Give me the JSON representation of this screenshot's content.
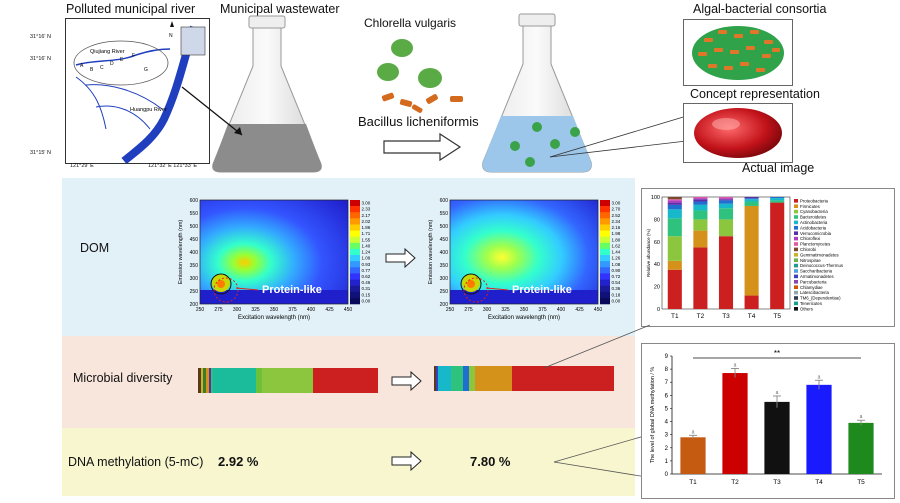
{
  "top": {
    "river_title": "Polluted municipal river",
    "wastewater_title": "Municipal wastewater",
    "consortia_title": "Algal-bacterial consortia",
    "chlorella": "Chlorella vulgaris",
    "bacillus": "Bacillus licheniformis",
    "concept": "Concept representation",
    "actual": "Actual image"
  },
  "map": {
    "lat1": "31°16' N",
    "lat2": "31°16' N",
    "lat3": "31°15' N",
    "lon1": "121°29' E",
    "lon2": "121°32' E 121°33' E",
    "qiujiang": "Qiujiang River",
    "huangpu": "Huangpu River",
    "sites": [
      "A",
      "B",
      "C",
      "D",
      "E",
      "F",
      "G"
    ],
    "north": "N"
  },
  "rows": {
    "dom": "DOM",
    "microbial": "Microbial diversity",
    "dna": "DNA methylation (5-mC)",
    "dna_before": "2.92 %",
    "dna_after": "7.80 %"
  },
  "eem": {
    "ylabel": "Emission wavelength (nm)",
    "xlabel": "Excitation wavelength (nm)",
    "peak_label": "Protein-like",
    "xticks": [
      "250",
      "275",
      "300",
      "325",
      "350",
      "375",
      "400",
      "425",
      "450"
    ],
    "yticks": [
      "600",
      "550",
      "500",
      "450",
      "400",
      "350",
      "300",
      "250",
      "200"
    ],
    "scale_before": [
      "3.00",
      "2.33",
      "2.17",
      "2.02",
      "1.86",
      "1.71",
      "1.55",
      "1.40",
      "1.24",
      "1.09",
      "0.93",
      "0.77",
      "0.62",
      "0.46",
      "0.31",
      "0.15",
      "0.00"
    ],
    "scale_after": [
      "3.00",
      "2.70",
      "2.52",
      "2.34",
      "2.16",
      "1.98",
      "1.80",
      "1.62",
      "1.44",
      "1.26",
      "1.08",
      "0.90",
      "0.72",
      "0.54",
      "0.36",
      "0.18",
      "0.00"
    ]
  },
  "abundance": {
    "ylabel": "Relative abundance (%)",
    "yticks": [
      "100",
      "80",
      "60",
      "40",
      "20",
      "0"
    ],
    "groups": [
      "T1",
      "T2",
      "T3",
      "T4",
      "T5"
    ],
    "legend": [
      {
        "name": "Proteobacteria",
        "color": "#cc1f1f"
      },
      {
        "name": "Firmicutes",
        "color": "#d4921a"
      },
      {
        "name": "Cyanobacteria",
        "color": "#8cc63f"
      },
      {
        "name": "Bacteroidetes",
        "color": "#2ec27e"
      },
      {
        "name": "Actinobacteria",
        "color": "#17b8c9"
      },
      {
        "name": "Acidobacteria",
        "color": "#1f6fd1"
      },
      {
        "name": "Verrucomicrobia",
        "color": "#5b2fa8"
      },
      {
        "name": "Chloroflexi",
        "color": "#b03cc2"
      },
      {
        "name": "Planctomycetes",
        "color": "#e05aa6"
      },
      {
        "name": "Chlorobi",
        "color": "#7a4a2a"
      },
      {
        "name": "Gemmatimonadetes",
        "color": "#c9b32b"
      },
      {
        "name": "Nitrospirae",
        "color": "#6bb34a"
      },
      {
        "name": "Deinococcus-Thermus",
        "color": "#1f9c8b"
      },
      {
        "name": "Saccharibacteria",
        "color": "#4aa3df"
      },
      {
        "name": "Armatimonadetes",
        "color": "#3a3fbf"
      },
      {
        "name": "Parcubacteria",
        "color": "#8e44ad"
      },
      {
        "name": "Chlamydiae",
        "color": "#d35400"
      },
      {
        "name": "Latescibacteria",
        "color": "#95a5a6"
      },
      {
        "name": "TM6_(Dependentiae)",
        "color": "#2c3e50"
      },
      {
        "name": "Tenericutes",
        "color": "#16a085"
      },
      {
        "name": "Others",
        "color": "#111111"
      }
    ],
    "stacks": [
      [
        35,
        8,
        22,
        16,
        8,
        4,
        2,
        2,
        1,
        2
      ],
      [
        55,
        15,
        10,
        8,
        5,
        3,
        2,
        1,
        1,
        0
      ],
      [
        65,
        0,
        15,
        10,
        4,
        3,
        1,
        1,
        1,
        0
      ],
      [
        12,
        80,
        0,
        4,
        2,
        1,
        1,
        0,
        0,
        0
      ],
      [
        95,
        0,
        0,
        2,
        2,
        1,
        0,
        0,
        0,
        0
      ]
    ]
  },
  "diversity_bars": {
    "before": [
      {
        "color": "#5a3a1a",
        "w": 1
      },
      {
        "color": "#c9b32b",
        "w": 1
      },
      {
        "color": "#3a7d2a",
        "w": 1
      },
      {
        "color": "#d4921a",
        "w": 1.2
      },
      {
        "color": "#5b2fa8",
        "w": 0.8
      },
      {
        "color": "#2ec27e",
        "w": 1
      },
      {
        "color": "#1abc9c",
        "w": 17
      },
      {
        "color": "#6bc23a",
        "w": 2.5
      },
      {
        "color": "#8cc63f",
        "w": 20
      },
      {
        "color": "#cc1f1f",
        "w": 26
      }
    ],
    "after": [
      {
        "color": "#5a3a1a",
        "w": 0.8
      },
      {
        "color": "#3a3fbf",
        "w": 1
      },
      {
        "color": "#17b8c9",
        "w": 6
      },
      {
        "color": "#2ec27e",
        "w": 6
      },
      {
        "color": "#1f6fd1",
        "w": 2.5
      },
      {
        "color": "#8cc63f",
        "w": 3
      },
      {
        "color": "#d4921a",
        "w": 17
      },
      {
        "color": "#cc1f1f",
        "w": 48
      }
    ]
  },
  "chart_data": {
    "type": "bar",
    "ylabel": "The level of global DNA methylation / %",
    "categories": [
      "T1",
      "T2",
      "T3",
      "T4",
      "T5"
    ],
    "values": [
      2.8,
      7.7,
      5.5,
      6.8,
      3.9
    ],
    "errors": [
      0.15,
      0.35,
      0.45,
      0.35,
      0.2
    ],
    "colors": [
      "#c55a11",
      "#cc0000",
      "#111111",
      "#1a1aff",
      "#1e8a1e"
    ],
    "ylim": [
      0,
      9
    ],
    "yticks": [
      "0",
      "1",
      "2",
      "3",
      "4",
      "5",
      "6",
      "7",
      "8",
      "9"
    ],
    "significance": "**",
    "group_letters": [
      "a",
      "a",
      "a",
      "a",
      "a"
    ]
  }
}
